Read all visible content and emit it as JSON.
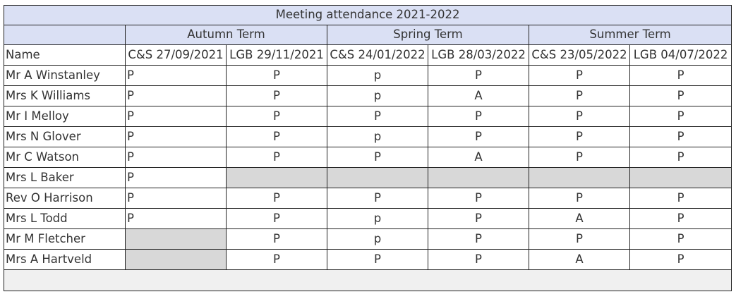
{
  "title": "Meeting attendance 2021-2022",
  "terms": [
    "Autumn Term",
    "Spring Term",
    "Summer Term"
  ],
  "name_header": "Name",
  "meetings": [
    "C&S 27/09/2021",
    "LGB 29/11/2021",
    "C&S 24/01/2022",
    "LGB 28/03/2022",
    "C&S 23/05/2022",
    "LGB 04/07/2022"
  ],
  "rows": [
    {
      "name": "Mr A Winstanley",
      "cells": [
        "P",
        "P",
        "p",
        "P",
        "P",
        "P"
      ]
    },
    {
      "name": "Mrs K Williams",
      "cells": [
        "P",
        "P",
        "p",
        "A",
        "P",
        "P"
      ]
    },
    {
      "name": "Mr I Melloy",
      "cells": [
        "P",
        "P",
        "P",
        "P",
        "P",
        "P"
      ]
    },
    {
      "name": "Mrs N Glover",
      "cells": [
        "P",
        "P",
        "p",
        "P",
        "P",
        "P"
      ]
    },
    {
      "name": "Mr C Watson",
      "cells": [
        "P",
        "P",
        "P",
        "A",
        "P",
        "P"
      ]
    },
    {
      "name": "Mrs L Baker",
      "cells": [
        "P",
        null,
        null,
        null,
        null,
        null
      ]
    },
    {
      "name": "Rev O Harrison",
      "cells": [
        "P",
        "P",
        "P",
        "P",
        "P",
        "P"
      ]
    },
    {
      "name": "Mrs L Todd",
      "cells": [
        "P",
        "P",
        "p",
        "P",
        "A",
        "P"
      ]
    },
    {
      "name": "Mr M Fletcher",
      "cells": [
        null,
        "P",
        "p",
        "P",
        "P",
        "P"
      ]
    },
    {
      "name": "Mrs A Hartveld",
      "cells": [
        null,
        "P",
        "P",
        "P",
        "A",
        "P"
      ]
    }
  ],
  "colors": {
    "header_fill": "#dae0f4",
    "blank_fill": "#d8d8d8",
    "footer_fill": "#f0f0f0"
  }
}
